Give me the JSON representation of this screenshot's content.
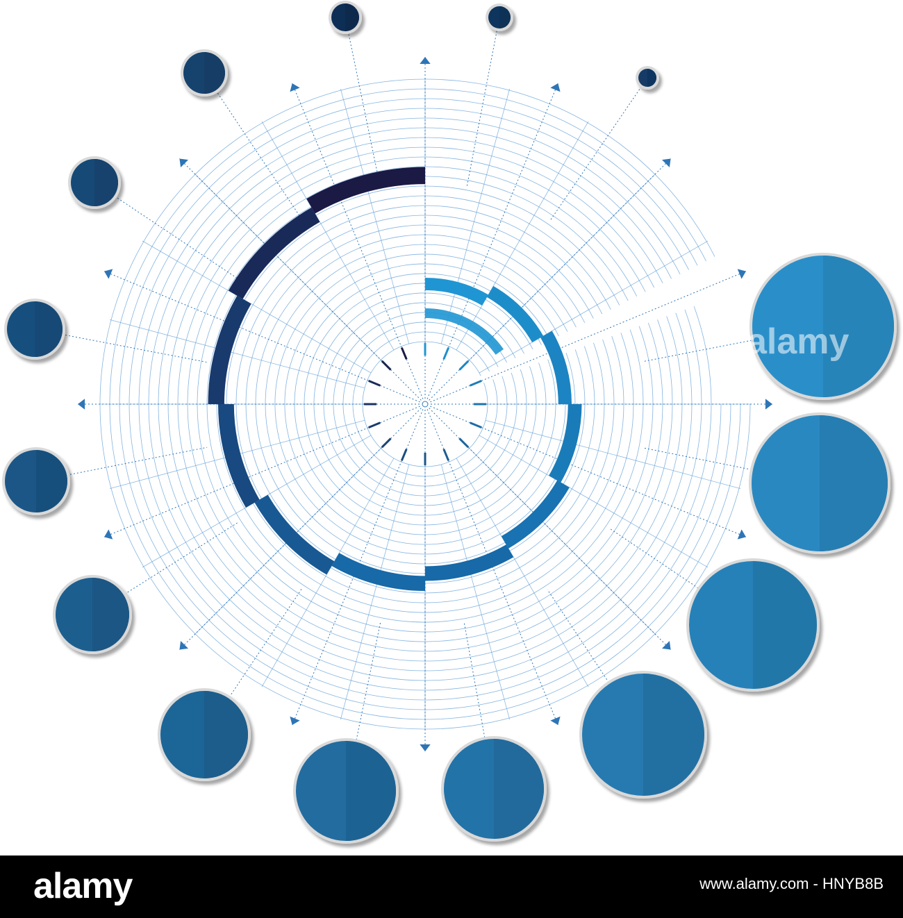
{
  "watermark": "alamy",
  "footer": {
    "logo_text": "alamy",
    "image_id": "www.alamy.com - HNYB8B"
  },
  "colors": {
    "grid": "#5b9bd5",
    "axis": "#2e75b6",
    "ring_light": "#1f96d3",
    "ring_mid": "#1769a8",
    "ring_dark": "#123f6e",
    "ring_darkest": "#1a1a45",
    "bubble_light": "#2b8fc9",
    "bubble_dark": "#0f2d55",
    "bubble_border": "#d9d9d9",
    "footer_bg": "#000000"
  },
  "diagram": {
    "ring_segments": 12,
    "bubbles": 12,
    "axis_arrows": 16,
    "icons": [
      "arrowhead-icon"
    ]
  }
}
